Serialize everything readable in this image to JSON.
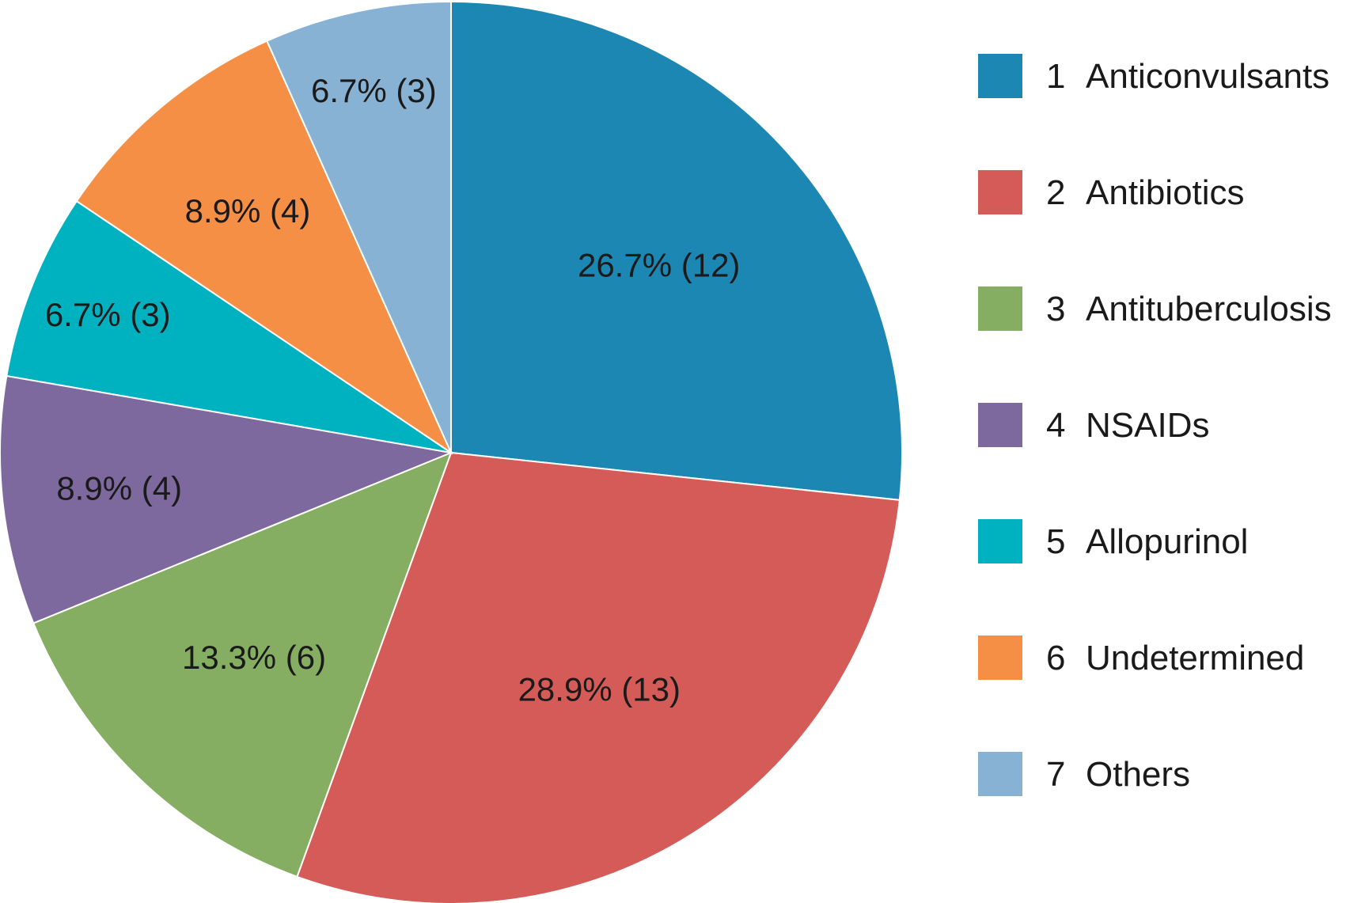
{
  "chart_data": {
    "type": "pie",
    "title": "",
    "start_angle": "12 o'clock",
    "direction": "clockwise",
    "legend_position": "right",
    "slices": [
      {
        "number": "1",
        "category": "Anticonvulsants",
        "percent": 26.7,
        "count": 12,
        "label": "26.7% (12)",
        "color": "#1d87b4"
      },
      {
        "number": "2",
        "category": "Antibiotics",
        "percent": 28.9,
        "count": 13,
        "label": "28.9% (13)",
        "color": "#d45b57"
      },
      {
        "number": "3",
        "category": "Antituberculosis",
        "percent": 13.3,
        "count": 6,
        "label": "13.3% (6)",
        "color": "#86ae62"
      },
      {
        "number": "4",
        "category": "NSAIDs",
        "percent": 8.9,
        "count": 4,
        "label": "8.9% (4)",
        "color": "#7e699e"
      },
      {
        "number": "5",
        "category": "Allopurinol",
        "percent": 6.7,
        "count": 3,
        "label": "6.7% (3)",
        "color": "#00b1c0"
      },
      {
        "number": "6",
        "category": "Undetermined",
        "percent": 8.9,
        "count": 4,
        "label": "8.9% (4)",
        "color": "#f58f46"
      },
      {
        "number": "7",
        "category": "Others",
        "percent": 6.7,
        "count": 3,
        "label": "6.7% (3)",
        "color": "#87b2d3"
      }
    ]
  }
}
